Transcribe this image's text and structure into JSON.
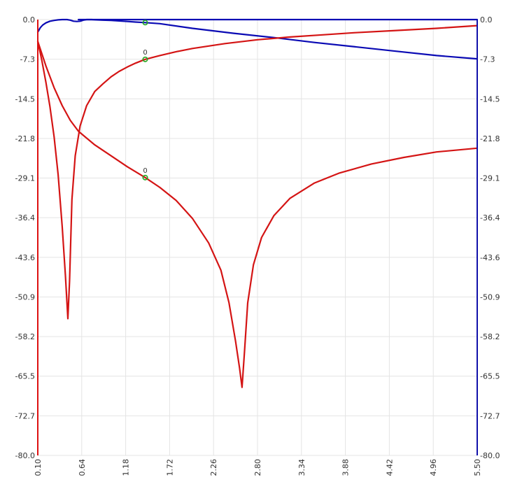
{
  "chart_data": {
    "type": "line",
    "title": "",
    "xlabel": "",
    "ylabel": "",
    "xlim": [
      0.1,
      5.5
    ],
    "ylim": [
      -80.0,
      0.0
    ],
    "y2lim": [
      -80.0,
      0.0
    ],
    "grid": true,
    "x_ticks": [
      "0.10",
      "0.64",
      "1.18",
      "1.72",
      "2.26",
      "2.80",
      "3.34",
      "3.88",
      "4.42",
      "4.96",
      "5.50"
    ],
    "y_ticks_left": [
      "0.0",
      "-7.3",
      "-14.5",
      "-21.8",
      "-29.1",
      "-36.4",
      "-43.6",
      "-50.9",
      "-58.2",
      "-65.5",
      "-72.7",
      "-80.0"
    ],
    "y_ticks_right": [
      "0.0",
      "-7.3",
      "-14.5",
      "-21.8",
      "-29.1",
      "-36.4",
      "-43.6",
      "-50.9",
      "-58.2",
      "-65.5",
      "-72.7",
      "-80.0"
    ],
    "axis_colors": {
      "left": "#dd1111",
      "right": "#1111aa",
      "grid": "#e4e4e4",
      "text": "#333333"
    },
    "series": [
      {
        "axis": "right",
        "color": "#0a0ab4",
        "points": [
          [
            0.1,
            -2.3
          ],
          [
            0.13,
            -1.5
          ],
          [
            0.16,
            -1.0
          ],
          [
            0.2,
            -0.6
          ],
          [
            0.25,
            -0.3
          ],
          [
            0.3,
            -0.15
          ],
          [
            0.35,
            -0.05
          ],
          [
            0.4,
            0.0
          ],
          [
            0.46,
            0.0
          ],
          [
            0.5,
            -0.1
          ],
          [
            0.54,
            -0.3
          ],
          [
            0.58,
            -0.35
          ],
          [
            0.62,
            -0.3
          ],
          [
            0.66,
            -0.1
          ],
          [
            0.7,
            0.0
          ],
          [
            0.76,
            0.0
          ],
          [
            0.82,
            -0.05
          ],
          [
            0.9,
            -0.1
          ],
          [
            1.0,
            -0.15
          ],
          [
            1.1,
            -0.25
          ],
          [
            1.2,
            -0.35
          ],
          [
            1.3,
            -0.45
          ],
          [
            1.42,
            -0.55
          ],
          [
            1.6,
            -0.75
          ],
          [
            2.0,
            -1.6
          ],
          [
            2.5,
            -2.5
          ],
          [
            3.0,
            -3.3
          ],
          [
            3.5,
            -4.2
          ],
          [
            4.0,
            -5.0
          ],
          [
            4.5,
            -5.8
          ],
          [
            5.0,
            -6.6
          ],
          [
            5.5,
            -7.2
          ]
        ]
      },
      {
        "axis": "right",
        "color": "#0a0ab4",
        "points": [
          [
            0.6,
            0.0
          ],
          [
            5.5,
            0.0
          ]
        ]
      },
      {
        "axis": "left",
        "color": "#d41414",
        "points": [
          [
            0.1,
            -4.0
          ],
          [
            0.15,
            -7.5
          ],
          [
            0.2,
            -11.5
          ],
          [
            0.25,
            -16.0
          ],
          [
            0.3,
            -21.5
          ],
          [
            0.35,
            -28.5
          ],
          [
            0.4,
            -38.0
          ],
          [
            0.44,
            -47.0
          ],
          [
            0.47,
            -54.9
          ],
          [
            0.49,
            -48.0
          ],
          [
            0.52,
            -33.0
          ],
          [
            0.56,
            -25.0
          ],
          [
            0.62,
            -19.5
          ],
          [
            0.7,
            -15.8
          ],
          [
            0.8,
            -13.2
          ],
          [
            0.9,
            -11.8
          ],
          [
            1.0,
            -10.5
          ],
          [
            1.1,
            -9.5
          ],
          [
            1.2,
            -8.7
          ],
          [
            1.3,
            -8.0
          ],
          [
            1.42,
            -7.3
          ],
          [
            1.6,
            -6.6
          ],
          [
            1.8,
            -5.9
          ],
          [
            2.0,
            -5.3
          ],
          [
            2.4,
            -4.4
          ],
          [
            2.8,
            -3.7
          ],
          [
            3.2,
            -3.2
          ],
          [
            3.6,
            -2.8
          ],
          [
            4.0,
            -2.4
          ],
          [
            4.5,
            -2.0
          ],
          [
            5.0,
            -1.6
          ],
          [
            5.5,
            -1.1
          ]
        ]
      },
      {
        "axis": "left",
        "color": "#d41414",
        "points": [
          [
            0.1,
            -4.0
          ],
          [
            0.2,
            -8.5
          ],
          [
            0.3,
            -12.5
          ],
          [
            0.4,
            -15.8
          ],
          [
            0.5,
            -18.5
          ],
          [
            0.6,
            -20.5
          ],
          [
            0.8,
            -23.0
          ],
          [
            1.0,
            -25.0
          ],
          [
            1.2,
            -27.0
          ],
          [
            1.42,
            -29.0
          ],
          [
            1.6,
            -30.8
          ],
          [
            1.8,
            -33.2
          ],
          [
            2.0,
            -36.5
          ],
          [
            2.2,
            -41.0
          ],
          [
            2.35,
            -46.0
          ],
          [
            2.45,
            -52.0
          ],
          [
            2.53,
            -59.0
          ],
          [
            2.58,
            -64.0
          ],
          [
            2.61,
            -67.5
          ],
          [
            2.64,
            -61.0
          ],
          [
            2.68,
            -52.0
          ],
          [
            2.75,
            -45.0
          ],
          [
            2.85,
            -40.0
          ],
          [
            3.0,
            -36.0
          ],
          [
            3.2,
            -32.8
          ],
          [
            3.5,
            -30.0
          ],
          [
            3.8,
            -28.2
          ],
          [
            4.2,
            -26.5
          ],
          [
            4.6,
            -25.3
          ],
          [
            5.0,
            -24.3
          ],
          [
            5.5,
            -23.6
          ]
        ]
      }
    ],
    "markers": [
      {
        "x": 1.42,
        "y": -0.55,
        "axis": "right",
        "label": ""
      },
      {
        "x": 1.42,
        "y": -7.3,
        "axis": "left",
        "label": "0"
      },
      {
        "x": 1.42,
        "y": -29.0,
        "axis": "left",
        "label": "0"
      }
    ]
  }
}
